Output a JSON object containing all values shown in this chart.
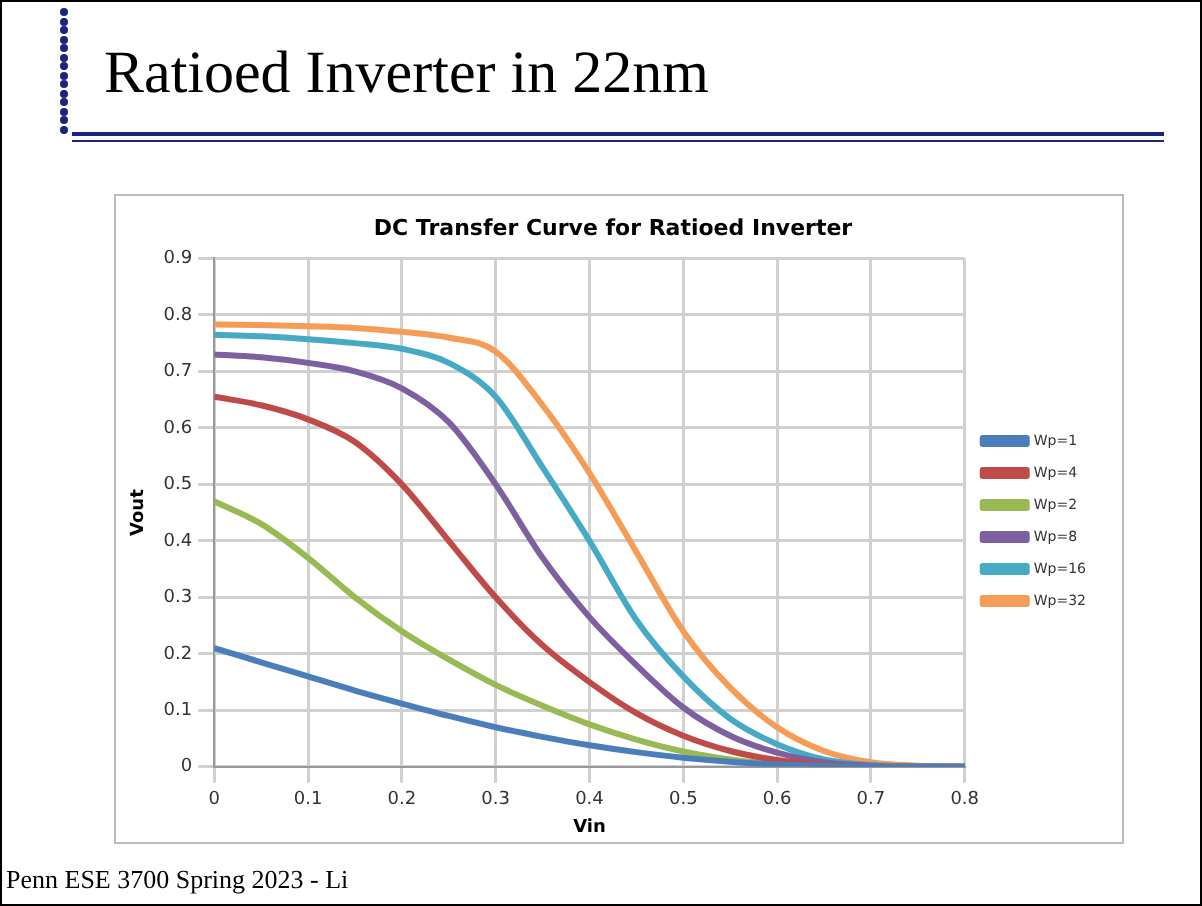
{
  "chart_data": {
    "type": "line",
    "title": "Ratioed Inverter in 22nm",
    "subtitle": "DC Transfer Curve for Ratioed Inverter",
    "xlabel": "Vin",
    "ylabel": "Vout",
    "annotations": [
      "Penn ESE 3700 Spring 2023 - Li"
    ],
    "x": [
      0,
      0.05,
      0.1,
      0.15,
      0.2,
      0.25,
      0.3,
      0.35,
      0.4,
      0.45,
      0.5,
      0.55,
      0.6,
      0.65,
      0.7,
      0.75,
      0.8
    ],
    "series": [
      {
        "name": "Wp=1",
        "color": "#4a7ebb",
        "values": [
          0.21,
          0.185,
          0.16,
          0.135,
          0.112,
          0.09,
          0.07,
          0.053,
          0.038,
          0.026,
          0.016,
          0.009,
          0.004,
          0.002,
          0.001,
          0,
          0
        ]
      },
      {
        "name": "Wp=4",
        "color": "#be4b48",
        "values": [
          0.655,
          0.64,
          0.615,
          0.575,
          0.5,
          0.4,
          0.3,
          0.215,
          0.15,
          0.095,
          0.055,
          0.028,
          0.012,
          0.004,
          0.001,
          0,
          0
        ]
      },
      {
        "name": "Wp=2",
        "color": "#98b954",
        "values": [
          0.47,
          0.43,
          0.37,
          0.3,
          0.24,
          0.19,
          0.145,
          0.108,
          0.075,
          0.048,
          0.027,
          0.013,
          0.005,
          0.002,
          0.001,
          0,
          0
        ]
      },
      {
        "name": "Wp=8",
        "color": "#7d60a0",
        "values": [
          0.73,
          0.725,
          0.715,
          0.7,
          0.67,
          0.61,
          0.5,
          0.37,
          0.265,
          0.18,
          0.105,
          0.055,
          0.025,
          0.008,
          0.002,
          0,
          0
        ]
      },
      {
        "name": "Wp=16",
        "color": "#46aac5",
        "values": [
          0.765,
          0.762,
          0.757,
          0.75,
          0.74,
          0.715,
          0.655,
          0.53,
          0.4,
          0.26,
          0.16,
          0.085,
          0.04,
          0.013,
          0.003,
          0.001,
          0
        ]
      },
      {
        "name": "Wp=32",
        "color": "#f59d56",
        "values": [
          0.783,
          0.782,
          0.78,
          0.777,
          0.77,
          0.76,
          0.735,
          0.64,
          0.52,
          0.38,
          0.24,
          0.14,
          0.07,
          0.028,
          0.008,
          0.002,
          0
        ]
      }
    ],
    "xlim": [
      0,
      0.8
    ],
    "xticks": [
      0,
      0.1,
      0.2,
      0.3,
      0.4,
      0.5,
      0.6,
      0.7,
      0.8
    ],
    "ylim": [
      0,
      0.9
    ],
    "yticks": [
      0,
      0.1,
      0.2,
      0.3,
      0.4,
      0.5,
      0.6,
      0.7,
      0.8,
      0.9
    ],
    "grid": true,
    "legend": "right",
    "marker": "none",
    "line_style": "solid"
  }
}
